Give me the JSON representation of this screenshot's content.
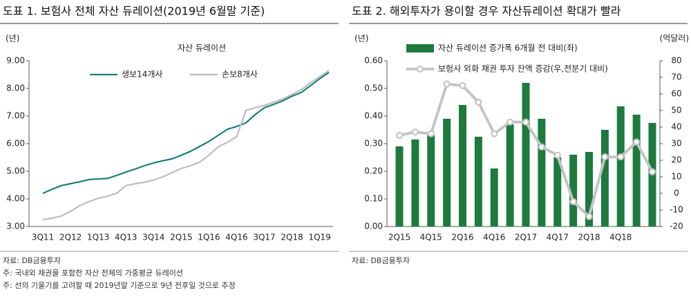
{
  "chart_data": [
    {
      "type": "line",
      "title": "도표 1. 보험사 전체 자산 듀레이션(2019년 6월말 기준)",
      "subtitle": "자산 듀레이션",
      "y_label": "(년)",
      "categories": [
        "3Q11",
        null,
        null,
        "2Q12",
        null,
        null,
        "1Q13",
        null,
        null,
        "4Q13",
        null,
        null,
        "3Q14",
        null,
        null,
        "2Q15",
        null,
        null,
        "1Q16",
        null,
        null,
        "4Q16",
        null,
        null,
        "3Q17",
        null,
        null,
        "2Q18",
        null,
        null,
        "1Q19",
        null
      ],
      "series": [
        {
          "name": "생보14개사",
          "color": "#1b7f79",
          "values": [
            4.2,
            4.35,
            4.48,
            4.55,
            4.62,
            4.7,
            4.72,
            4.74,
            4.85,
            4.97,
            5.08,
            5.2,
            5.3,
            5.38,
            5.45,
            5.58,
            5.72,
            5.9,
            6.08,
            6.3,
            6.52,
            6.62,
            6.75,
            7.05,
            7.3,
            7.42,
            7.55,
            7.72,
            7.85,
            8.1,
            8.35,
            8.58
          ]
        },
        {
          "name": "손보8개사",
          "color": "#bdbdbd",
          "values": [
            3.25,
            3.3,
            3.38,
            3.55,
            3.75,
            3.9,
            4.02,
            4.1,
            4.2,
            4.48,
            4.55,
            4.6,
            4.68,
            4.8,
            4.95,
            5.1,
            5.2,
            5.33,
            5.58,
            5.88,
            6.05,
            6.25,
            7.2,
            7.3,
            7.38,
            7.5,
            7.62,
            7.78,
            7.95,
            8.2,
            8.42,
            8.65
          ]
        }
      ],
      "ylim": [
        3,
        9
      ],
      "yticks": [
        {
          "value": 3,
          "label": "3.00"
        },
        {
          "value": 4,
          "label": "4.00"
        },
        {
          "value": 5,
          "label": "5.00"
        },
        {
          "value": 6,
          "label": "6.00"
        },
        {
          "value": 7,
          "label": "7.00"
        },
        {
          "value": 8,
          "label": "8.00"
        },
        {
          "value": 9,
          "label": "9.00"
        }
      ],
      "grid": false,
      "notes": [
        "자료: DB금융투자",
        "주: 국내외 채권을 포함한 자산 전체의 가중평균 듀레이션",
        "주: 선의 기울기를 고려할 때 2019년말 기준으로 9년 전후일 것으로 추정"
      ]
    },
    {
      "type": "combo",
      "title": "도표 2. 해외투자가 용이할 경우 자산듀레이션 확대가 빨라",
      "y_label": "(년)",
      "y2_label": "(억달러)",
      "categories": [
        "2Q15",
        null,
        "4Q15",
        null,
        "2Q16",
        null,
        "4Q16",
        null,
        "2Q17",
        null,
        "4Q17",
        null,
        "2Q18",
        null,
        "4Q18",
        null,
        null
      ],
      "series": [
        {
          "name": "자산 듀레이션 증가폭 6개월 전 대비(좌)",
          "type": "bar",
          "color": "#1e7a3e",
          "values": [
            0.29,
            0.315,
            0.33,
            0.39,
            0.44,
            0.325,
            0.21,
            0.37,
            0.52,
            0.39,
            0.25,
            0.26,
            0.27,
            0.35,
            0.435,
            0.405,
            0.375
          ]
        },
        {
          "name": "보험사 외화 채권 투자 잔액 증감(우,전분기 대비)",
          "type": "line",
          "axis": "y2",
          "color": "#c4c4c4",
          "values": [
            35,
            37,
            36,
            66,
            65,
            55,
            36,
            43,
            43,
            28,
            23,
            -5,
            -14,
            22,
            22,
            31,
            13
          ]
        }
      ],
      "ylim": [
        0,
        0.6
      ],
      "yticks": [
        {
          "value": 0,
          "label": "0.00"
        },
        {
          "value": 0.1,
          "label": "0.10"
        },
        {
          "value": 0.2,
          "label": "0.20"
        },
        {
          "value": 0.3,
          "label": "0.30"
        },
        {
          "value": 0.4,
          "label": "0.40"
        },
        {
          "value": 0.5,
          "label": "0.50"
        },
        {
          "value": 0.6,
          "label": "0.60"
        }
      ],
      "y2lim": [
        -20,
        80
      ],
      "y2ticks": [
        -20,
        -10,
        0,
        10,
        20,
        30,
        40,
        50,
        60,
        70,
        80
      ],
      "grid": false,
      "notes": [
        "자료: DB금융투자"
      ]
    }
  ]
}
